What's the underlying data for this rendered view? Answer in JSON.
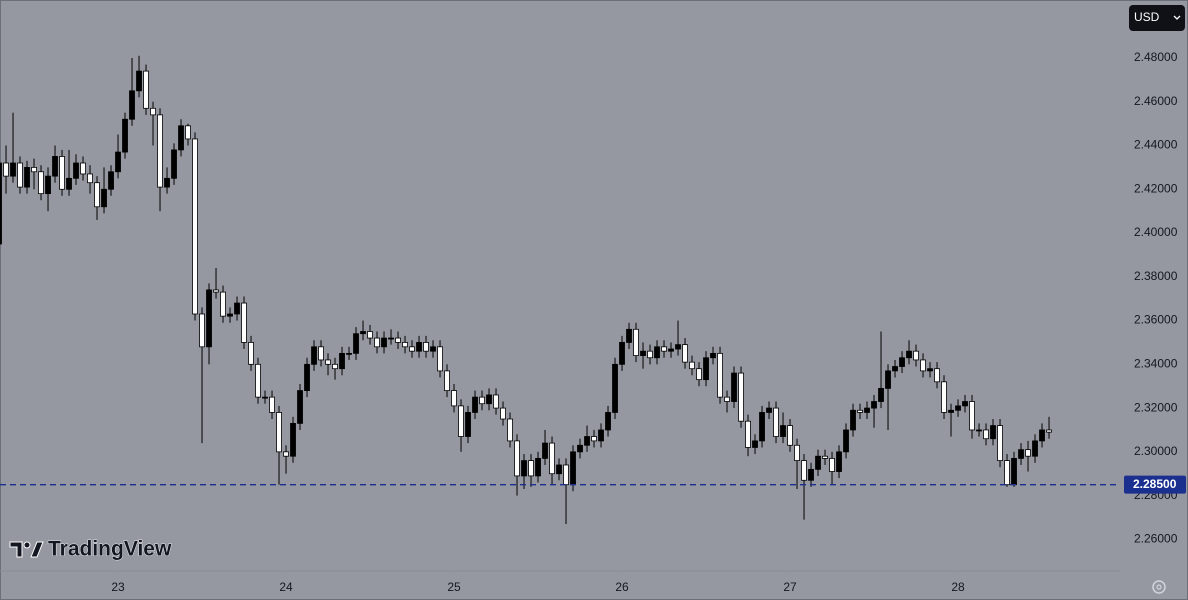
{
  "chart_data": {
    "type": "candlestick",
    "currency": "USD",
    "logo": "TradingView",
    "colors": {
      "up": "#000000",
      "down": "#ffffff",
      "wick": "#000000"
    },
    "ylim": [
      2.246,
      2.5065
    ],
    "yticks": [
      {
        "value": 2.26,
        "label": "2.26000"
      },
      {
        "value": 2.28,
        "label": "2.28000"
      },
      {
        "value": 2.3,
        "label": "2.30000"
      },
      {
        "value": 2.32,
        "label": "2.32000"
      },
      {
        "value": 2.34,
        "label": "2.34000"
      },
      {
        "value": 2.36,
        "label": "2.36000"
      },
      {
        "value": 2.38,
        "label": "2.38000"
      },
      {
        "value": 2.4,
        "label": "2.40000"
      },
      {
        "value": 2.42,
        "label": "2.42000"
      },
      {
        "value": 2.44,
        "label": "2.44000"
      },
      {
        "value": 2.46,
        "label": "2.46000"
      },
      {
        "value": 2.48,
        "label": "2.48000"
      }
    ],
    "xlim": [
      0.14,
      160.14
    ],
    "xticks": [
      {
        "value": 17,
        "label": "23"
      },
      {
        "value": 41,
        "label": "24"
      },
      {
        "value": 65,
        "label": "25"
      },
      {
        "value": 89,
        "label": "26"
      },
      {
        "value": 113,
        "label": "27"
      },
      {
        "value": 137,
        "label": "28"
      }
    ],
    "price_line": {
      "value": 2.285,
      "label": "2.28500",
      "color": "#1b2f8f"
    },
    "open": [
      2.395,
      2.432,
      2.426,
      2.432,
      2.421,
      2.43,
      2.428,
      2.418,
      2.426,
      2.435,
      2.42,
      2.425,
      2.432,
      2.427,
      2.423,
      2.412,
      2.42,
      2.428,
      2.437,
      2.452,
      2.465,
      2.474,
      2.457,
      2.454,
      2.421,
      2.425,
      2.438,
      2.449,
      2.443,
      2.363,
      2.348,
      2.374,
      2.373,
      2.362,
      2.363,
      2.368,
      2.35,
      2.34,
      2.325,
      2.325,
      2.318,
      2.3,
      2.298,
      2.313,
      2.328,
      2.34,
      2.348,
      2.342,
      2.34,
      2.338,
      2.345,
      2.345,
      2.354,
      2.355,
      2.352,
      2.348,
      2.352,
      2.352,
      2.35,
      2.348,
      2.346,
      2.35,
      2.346,
      2.348,
      2.337,
      2.328,
      2.321,
      2.307,
      2.318,
      2.325,
      2.322,
      2.326,
      2.32,
      2.315,
      2.305,
      2.289,
      2.296,
      2.289,
      2.297,
      2.304,
      2.29,
      2.294,
      2.285,
      2.3,
      2.303,
      2.307,
      2.305,
      2.31,
      2.318,
      2.34,
      2.35,
      2.356,
      2.344,
      2.346,
      2.343,
      2.348,
      2.346,
      2.347,
      2.349,
      2.341,
      2.338,
      2.333,
      2.343,
      2.345,
      2.325,
      2.323,
      2.336,
      2.314,
      2.302,
      2.305,
      2.318,
      2.32,
      2.307,
      2.312,
      2.303,
      2.296,
      2.287,
      2.292,
      2.298,
      2.297,
      2.291,
      2.3,
      2.31,
      2.319,
      2.318,
      2.32,
      2.323,
      2.329,
      2.337,
      2.339,
      2.343,
      2.346,
      2.342,
      2.337,
      2.338,
      2.332,
      2.318,
      2.319,
      2.321,
      2.323,
      2.31,
      2.31,
      2.306,
      2.312,
      2.296,
      2.285,
      2.297,
      2.301,
      2.298,
      2.305,
      2.31
    ],
    "high": [
      2.435,
      2.44,
      2.455,
      2.435,
      2.433,
      2.434,
      2.431,
      2.43,
      2.44,
      2.438,
      2.438,
      2.436,
      2.435,
      2.431,
      2.426,
      2.43,
      2.431,
      2.445,
      2.455,
      2.48,
      2.481,
      2.477,
      2.46,
      2.457,
      2.43,
      2.441,
      2.452,
      2.45,
      2.446,
      2.366,
      2.377,
      2.384,
      2.376,
      2.366,
      2.371,
      2.371,
      2.353,
      2.343,
      2.328,
      2.328,
      2.321,
      2.303,
      2.316,
      2.331,
      2.343,
      2.351,
      2.351,
      2.345,
      2.343,
      2.348,
      2.348,
      2.357,
      2.36,
      2.358,
      2.355,
      2.355,
      2.356,
      2.355,
      2.353,
      2.351,
      2.353,
      2.353,
      2.351,
      2.351,
      2.34,
      2.331,
      2.324,
      2.321,
      2.328,
      2.328,
      2.329,
      2.329,
      2.323,
      2.318,
      2.308,
      2.299,
      2.299,
      2.3,
      2.31,
      2.307,
      2.297,
      2.297,
      2.303,
      2.306,
      2.312,
      2.31,
      2.313,
      2.321,
      2.343,
      2.353,
      2.359,
      2.359,
      2.35,
      2.349,
      2.351,
      2.351,
      2.35,
      2.36,
      2.352,
      2.344,
      2.341,
      2.346,
      2.348,
      2.348,
      2.328,
      2.339,
      2.339,
      2.317,
      2.308,
      2.321,
      2.323,
      2.323,
      2.318,
      2.315,
      2.306,
      2.299,
      2.295,
      2.301,
      2.301,
      2.3,
      2.303,
      2.313,
      2.322,
      2.322,
      2.323,
      2.326,
      2.355,
      2.34,
      2.342,
      2.346,
      2.351,
      2.349,
      2.345,
      2.341,
      2.341,
      2.335,
      2.322,
      2.324,
      2.326,
      2.326,
      2.313,
      2.313,
      2.315,
      2.315,
      2.299,
      2.3,
      2.304,
      2.305,
      2.308,
      2.313,
      2.316
    ],
    "low": [
      2.392,
      2.418,
      2.423,
      2.418,
      2.418,
      2.42,
      2.415,
      2.41,
      2.423,
      2.417,
      2.417,
      2.422,
      2.424,
      2.418,
      2.406,
      2.409,
      2.417,
      2.425,
      2.434,
      2.449,
      2.462,
      2.454,
      2.44,
      2.41,
      2.418,
      2.422,
      2.435,
      2.44,
      2.36,
      2.304,
      2.34,
      2.37,
      2.359,
      2.359,
      2.36,
      2.347,
      2.337,
      2.322,
      2.322,
      2.315,
      2.285,
      2.29,
      2.295,
      2.31,
      2.325,
      2.337,
      2.339,
      2.335,
      2.333,
      2.335,
      2.342,
      2.342,
      2.351,
      2.349,
      2.345,
      2.345,
      2.349,
      2.347,
      2.345,
      2.343,
      2.343,
      2.343,
      2.343,
      2.334,
      2.325,
      2.318,
      2.3,
      2.304,
      2.315,
      2.319,
      2.319,
      2.317,
      2.312,
      2.302,
      2.28,
      2.283,
      2.284,
      2.286,
      2.294,
      2.285,
      2.287,
      2.267,
      2.282,
      2.297,
      2.3,
      2.302,
      2.302,
      2.307,
      2.315,
      2.337,
      2.347,
      2.341,
      2.338,
      2.34,
      2.34,
      2.343,
      2.343,
      2.344,
      2.338,
      2.335,
      2.33,
      2.33,
      2.34,
      2.322,
      2.318,
      2.32,
      2.311,
      2.298,
      2.299,
      2.302,
      2.315,
      2.304,
      2.304,
      2.3,
      2.283,
      2.269,
      2.284,
      2.289,
      2.294,
      2.285,
      2.288,
      2.297,
      2.307,
      2.315,
      2.315,
      2.311,
      2.32,
      2.31,
      2.334,
      2.336,
      2.34,
      2.339,
      2.334,
      2.334,
      2.329,
      2.315,
      2.307,
      2.316,
      2.318,
      2.306,
      2.307,
      2.303,
      2.303,
      2.293,
      2.284,
      2.284,
      2.294,
      2.291,
      2.295,
      2.302,
      2.306
    ],
    "close": [
      2.432,
      2.426,
      2.432,
      2.421,
      2.43,
      2.428,
      2.418,
      2.426,
      2.435,
      2.42,
      2.425,
      2.432,
      2.427,
      2.423,
      2.412,
      2.42,
      2.428,
      2.437,
      2.452,
      2.465,
      2.474,
      2.457,
      2.454,
      2.421,
      2.425,
      2.438,
      2.449,
      2.443,
      2.363,
      2.348,
      2.374,
      2.373,
      2.362,
      2.363,
      2.368,
      2.35,
      2.34,
      2.325,
      2.325,
      2.318,
      2.3,
      2.298,
      2.313,
      2.328,
      2.34,
      2.348,
      2.342,
      2.34,
      2.338,
      2.345,
      2.345,
      2.354,
      2.355,
      2.352,
      2.348,
      2.352,
      2.352,
      2.35,
      2.348,
      2.346,
      2.35,
      2.346,
      2.348,
      2.337,
      2.328,
      2.321,
      2.307,
      2.318,
      2.325,
      2.322,
      2.326,
      2.32,
      2.315,
      2.305,
      2.289,
      2.296,
      2.289,
      2.297,
      2.304,
      2.29,
      2.294,
      2.285,
      2.3,
      2.303,
      2.307,
      2.305,
      2.31,
      2.318,
      2.34,
      2.35,
      2.356,
      2.344,
      2.346,
      2.343,
      2.348,
      2.346,
      2.347,
      2.349,
      2.341,
      2.338,
      2.333,
      2.343,
      2.345,
      2.325,
      2.323,
      2.336,
      2.314,
      2.302,
      2.305,
      2.318,
      2.32,
      2.307,
      2.312,
      2.303,
      2.296,
      2.287,
      2.292,
      2.298,
      2.297,
      2.291,
      2.3,
      2.31,
      2.319,
      2.318,
      2.32,
      2.323,
      2.329,
      2.337,
      2.339,
      2.343,
      2.346,
      2.342,
      2.337,
      2.338,
      2.332,
      2.318,
      2.319,
      2.321,
      2.323,
      2.31,
      2.31,
      2.306,
      2.312,
      2.296,
      2.285,
      2.297,
      2.301,
      2.298,
      2.305,
      2.31,
      2.309
    ]
  }
}
